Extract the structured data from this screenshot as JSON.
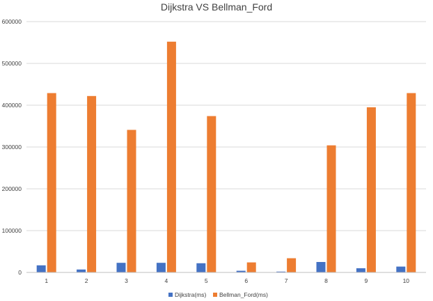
{
  "chart_data": {
    "type": "bar",
    "title": "Dijkstra VS Bellman_Ford",
    "xlabel": "",
    "ylabel": "",
    "categories": [
      "1",
      "2",
      "3",
      "4",
      "5",
      "6",
      "7",
      "8",
      "9",
      "10"
    ],
    "ylim": [
      0,
      600000
    ],
    "yticks": [
      "0",
      "100000",
      "200000",
      "300000",
      "400000",
      "500000",
      "600000"
    ],
    "grid": true,
    "legend_position": "bottom",
    "series": [
      {
        "name": "Dijkstra(ms)",
        "color": "#4472c4",
        "values": [
          17000,
          7000,
          23000,
          23000,
          22000,
          4000,
          2000,
          25000,
          10000,
          14000
        ]
      },
      {
        "name": "Bellman_Ford(ms)",
        "color": "#ed7d31",
        "values": [
          429000,
          422000,
          341000,
          552000,
          374000,
          24000,
          34000,
          304000,
          395000,
          429000
        ]
      }
    ]
  }
}
